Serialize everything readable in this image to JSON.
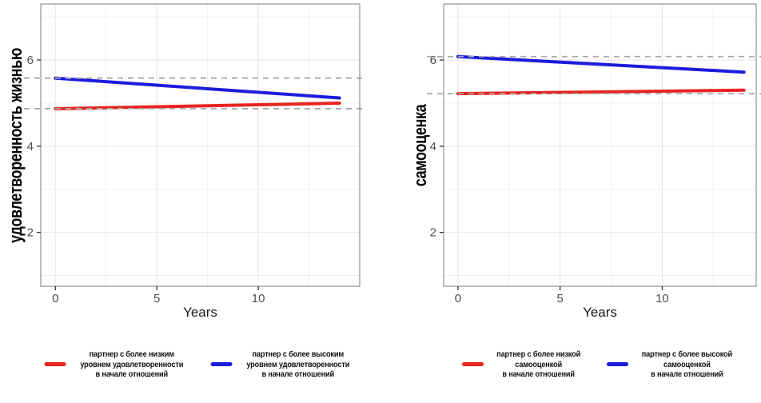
{
  "style": {
    "background": "#ffffff",
    "grid_major": "#e8e5ef",
    "grid_minor": "#f2f0f6",
    "panel_border": "#8f8f98",
    "tick_color": "#333333",
    "tick_label_color": "#4d4d4d",
    "reference_line_color": "#a9a9a9",
    "red": "#e8231f",
    "blue": "#1c1cdb"
  },
  "chart_data": [
    {
      "type": "line",
      "title": "",
      "ylabel": "удовлетворенность жизнью",
      "xlabel": "Years",
      "xlim": [
        -0.72,
        15.0
      ],
      "ylim": [
        0.75,
        7.3
      ],
      "x_breaks": [
        0,
        5,
        10
      ],
      "x_minor": [
        2.5,
        7.5,
        12.5
      ],
      "y_breaks": [
        2,
        4,
        6
      ],
      "y_minor": [
        1,
        3,
        5,
        7
      ],
      "grid": true,
      "legend_position": "bottom",
      "series": [
        {
          "name": "партнер с более низким уровнем удовлетворенности в начале отношений",
          "color": "#e8231f",
          "x": [
            0,
            14
          ],
          "y": [
            4.87,
            5.0
          ]
        },
        {
          "name": "партнер с более высоким уровнем удовлетворенности в начале отношений",
          "color": "#1c1cdb",
          "x": [
            0,
            14
          ],
          "y": [
            5.58,
            5.12
          ]
        }
      ],
      "reference_lines": [
        {
          "y": 5.58,
          "style": "dashed"
        },
        {
          "y": 4.87,
          "style": "dashed"
        }
      ],
      "legend": [
        {
          "color": "#e8231f",
          "label_lines": [
            "партнер с более низким",
            "уровнем удовлетворенности",
            "в начале отношений"
          ]
        },
        {
          "color": "#1c1cdb",
          "label_lines": [
            "партнер с более высоким",
            "уровнем удовлетворенности",
            "в начале отношений"
          ]
        }
      ]
    },
    {
      "type": "line",
      "title": "",
      "ylabel": "самооценка",
      "xlabel": "Years",
      "xlim": [
        -0.7,
        14.6
      ],
      "ylim": [
        0.75,
        7.3
      ],
      "x_breaks": [
        0,
        5,
        10
      ],
      "x_minor": [
        2.5,
        7.5,
        12.5
      ],
      "y_breaks": [
        2,
        4,
        6
      ],
      "y_minor": [
        1,
        3,
        5,
        7
      ],
      "grid": true,
      "legend_position": "bottom",
      "series": [
        {
          "name": "партнер с более низкой самооценкой в начале отношений",
          "color": "#e8231f",
          "x": [
            0,
            14
          ],
          "y": [
            5.22,
            5.3
          ]
        },
        {
          "name": "партнер с более высокой самооценкой в начале отношений",
          "color": "#1c1cdb",
          "x": [
            0,
            14
          ],
          "y": [
            6.08,
            5.72
          ]
        }
      ],
      "reference_lines": [
        {
          "y": 6.08,
          "style": "dashed"
        },
        {
          "y": 5.22,
          "style": "dashed"
        }
      ],
      "legend": [
        {
          "color": "#e8231f",
          "label_lines": [
            "партнер с более низкой",
            "самооценкой",
            "в начале отношений"
          ]
        },
        {
          "color": "#1c1cdb",
          "label_lines": [
            "партнер с более высокой",
            "самооценкой",
            "в начале отношений"
          ]
        }
      ]
    }
  ]
}
